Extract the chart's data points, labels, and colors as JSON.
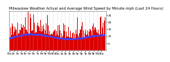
{
  "title": "Milwaukee Weather Actual and Average Wind Speed by Minute mph (Last 24 Hours)",
  "num_points": 1440,
  "actual_color": "#dd0000",
  "average_color": "#4444ff",
  "background_color": "#ffffff",
  "plot_bg_color": "#ffffff",
  "ylim": [
    0,
    28
  ],
  "avg_wind_mean": 8.5,
  "grid_color": "#bbbbbb",
  "title_fontsize": 3.8,
  "tick_fontsize": 3.0,
  "ytick_values": [
    5,
    10,
    15,
    20,
    25
  ],
  "xtick_interval": 60
}
